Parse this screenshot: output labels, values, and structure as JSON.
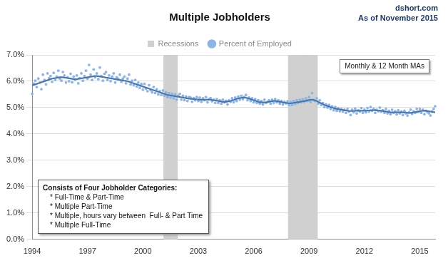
{
  "chart_data": {
    "type": "line",
    "title": "Multiple Jobholders",
    "annotations": [
      "dshort.com",
      "As of November 2015",
      "Monthly & 12 Month MAs"
    ],
    "note": {
      "title": "Consists of Four Jobholder Categories:",
      "items": [
        "* Full-Time & Part-Time",
        "* Multiple Part-Time",
        "* Multiple, hours vary between  Full- & Part Time",
        "* Multiple Full-Time"
      ]
    },
    "legend": "top",
    "grid": true,
    "ylim": [
      0,
      7
    ],
    "yticks": [
      {
        "value": 0,
        "label": "0.0%"
      },
      {
        "value": 1,
        "label": "1.0%"
      },
      {
        "value": 2,
        "label": "2.0%"
      },
      {
        "value": 3,
        "label": "3.0%"
      },
      {
        "value": 4,
        "label": "4.0%"
      },
      {
        "value": 5,
        "label": "5.0%"
      },
      {
        "value": 6,
        "label": "6.0%"
      },
      {
        "value": 7,
        "label": "7.0%"
      }
    ],
    "categories": [
      "1994",
      null,
      null,
      null,
      null,
      null,
      null,
      null,
      null,
      null,
      null,
      null,
      null,
      null,
      null,
      null,
      null,
      null,
      null,
      null,
      null,
      null,
      null,
      null,
      null,
      null,
      null,
      null,
      null,
      null,
      null,
      null,
      null,
      null,
      null,
      null,
      "1997",
      null,
      null,
      null,
      null,
      null,
      null,
      null,
      null,
      null,
      null,
      null,
      null,
      null,
      null,
      null,
      null,
      null,
      null,
      null,
      null,
      null,
      null,
      null,
      null,
      null,
      null,
      null,
      null,
      null,
      null,
      null,
      null,
      null,
      null,
      null,
      "2000",
      null,
      null,
      null,
      null,
      null,
      null,
      null,
      null,
      null,
      null,
      null,
      null,
      null,
      null,
      null,
      null,
      null,
      null,
      null,
      null,
      null,
      null,
      null,
      null,
      null,
      null,
      null,
      null,
      null,
      null,
      null,
      null,
      null,
      null,
      null,
      "2003",
      null,
      null,
      null,
      null,
      null,
      null,
      null,
      null,
      null,
      null,
      null,
      null,
      null,
      null,
      null,
      null,
      null,
      null,
      null,
      null,
      null,
      null,
      null,
      null,
      null,
      null,
      null,
      null,
      null,
      null,
      null,
      null,
      null,
      null,
      null,
      "2006",
      null,
      null,
      null,
      null,
      null,
      null,
      null,
      null,
      null,
      null,
      null,
      null,
      null,
      null,
      null,
      null,
      null,
      null,
      null,
      null,
      null,
      null,
      null,
      null,
      null,
      null,
      null,
      null,
      null,
      null,
      null,
      null,
      null,
      null,
      null,
      "2009",
      null,
      null,
      null,
      null,
      null,
      null,
      null,
      null,
      null,
      null,
      null,
      null,
      null,
      null,
      null,
      null,
      null,
      null,
      null,
      null,
      null,
      null,
      null,
      null,
      null,
      null,
      null,
      null,
      null,
      null,
      null,
      null,
      null,
      null,
      null,
      "2012",
      null,
      null,
      null,
      null,
      null,
      null,
      null,
      null,
      null,
      null,
      null,
      null,
      null,
      null,
      null,
      null,
      null,
      null,
      null,
      null,
      null,
      null,
      null,
      null,
      null,
      null,
      null,
      null,
      null,
      null,
      null,
      null,
      null,
      null,
      null,
      "2015",
      null,
      null,
      null,
      null,
      null,
      null,
      null,
      null,
      null,
      null
    ],
    "series": [
      {
        "name": "Recessions",
        "type": "bar",
        "color": "#d0d0d0",
        "values": [
          null,
          null,
          null,
          null,
          null,
          null,
          null,
          null,
          null,
          null,
          null,
          null,
          null,
          null,
          null,
          null,
          null,
          null,
          null,
          null,
          null,
          null,
          null,
          null,
          null,
          null,
          null,
          null,
          null,
          null,
          null,
          null,
          null,
          null,
          null,
          null,
          null,
          null,
          null,
          null,
          null,
          null,
          null,
          null,
          null,
          null,
          null,
          null,
          null,
          null,
          null,
          null,
          null,
          null,
          null,
          null,
          null,
          null,
          null,
          null,
          null,
          null,
          null,
          null,
          null,
          null,
          null,
          null,
          null,
          null,
          null,
          null,
          null,
          null,
          null,
          null,
          null,
          null,
          null,
          null,
          null,
          null,
          null,
          null,
          null,
          null,
          7,
          7,
          7,
          7,
          7,
          7,
          7,
          7,
          7,
          null,
          null,
          null,
          null,
          null,
          null,
          null,
          null,
          null,
          null,
          null,
          null,
          null,
          null,
          null,
          null,
          null,
          null,
          null,
          null,
          null,
          null,
          null,
          null,
          null,
          null,
          null,
          null,
          null,
          null,
          null,
          null,
          null,
          null,
          null,
          null,
          null,
          null,
          null,
          null,
          null,
          null,
          null,
          null,
          null,
          null,
          null,
          null,
          null,
          null,
          null,
          null,
          null,
          null,
          null,
          null,
          null,
          null,
          null,
          null,
          null,
          null,
          null,
          null,
          null,
          null,
          null,
          null,
          null,
          null,
          null,
          null,
          7,
          7,
          7,
          7,
          7,
          7,
          7,
          7,
          7,
          7,
          7,
          7,
          7,
          7,
          7,
          7,
          7,
          7,
          7,
          null,
          null,
          null,
          null,
          null,
          null,
          null,
          null,
          null,
          null,
          null,
          null,
          null,
          null,
          null,
          null,
          null,
          null,
          null,
          null,
          null,
          null,
          null,
          null,
          null,
          null,
          null,
          null,
          null,
          null,
          null,
          null,
          null,
          null,
          null,
          null,
          null,
          null,
          null,
          null,
          null,
          null,
          null,
          null,
          null,
          null,
          null,
          null,
          null,
          null,
          null,
          null,
          null,
          null,
          null,
          null,
          null,
          null,
          null,
          null,
          null,
          null,
          null,
          null,
          null,
          null,
          null,
          null,
          null,
          null,
          null,
          null,
          null,
          null,
          null,
          null,
          null
        ]
      },
      {
        "name": "Percent of Employed",
        "type": "line",
        "color": "#8eb4e3",
        "marker": "circle",
        "line_style": "none",
        "values": [
          5.52,
          5.91,
          6.02,
          5.78,
          6.1,
          5.95,
          5.7,
          6.25,
          6.05,
          5.88,
          6.3,
          6.12,
          6.2,
          5.98,
          6.32,
          6.05,
          6.18,
          6.4,
          6.1,
          6.02,
          6.35,
          6.22,
          5.95,
          6.15,
          6.0,
          6.28,
          5.96,
          6.18,
          6.05,
          6.22,
          5.92,
          6.12,
          6.3,
          6.02,
          6.2,
          6.4,
          6.1,
          6.62,
          6.25,
          6.05,
          6.45,
          6.15,
          6.3,
          6.08,
          6.52,
          6.2,
          6.02,
          6.28,
          6.35,
          6.05,
          6.22,
          6.0,
          6.18,
          6.3,
          5.95,
          6.15,
          6.08,
          6.25,
          5.98,
          6.1,
          6.18,
          5.92,
          6.1,
          6.25,
          5.88,
          6.02,
          5.85,
          6.05,
          5.8,
          5.95,
          5.75,
          5.9,
          5.68,
          5.9,
          5.72,
          5.62,
          5.85,
          5.66,
          5.58,
          5.78,
          5.55,
          5.7,
          5.5,
          5.62,
          5.48,
          5.65,
          5.45,
          5.58,
          5.4,
          5.55,
          5.38,
          5.52,
          5.35,
          5.5,
          5.3,
          5.45,
          5.52,
          5.3,
          5.45,
          5.28,
          5.42,
          5.25,
          5.4,
          5.38,
          5.22,
          5.36,
          5.28,
          5.4,
          5.25,
          5.38,
          5.22,
          5.35,
          5.28,
          5.4,
          5.2,
          5.32,
          5.36,
          5.24,
          5.3,
          5.18,
          5.32,
          5.18,
          5.28,
          5.15,
          5.3,
          5.2,
          5.26,
          5.12,
          5.28,
          5.22,
          5.35,
          5.2,
          5.38,
          5.25,
          5.42,
          5.3,
          5.45,
          5.32,
          5.4,
          5.48,
          5.28,
          5.38,
          5.25,
          5.35,
          5.2,
          5.32,
          5.18,
          5.28,
          5.15,
          5.25,
          5.12,
          5.3,
          5.18,
          5.22,
          5.28,
          5.15,
          5.3,
          5.18,
          5.32,
          5.2,
          5.28,
          5.15,
          5.25,
          5.12,
          5.22,
          5.16,
          5.24,
          5.1,
          5.22,
          5.1,
          5.25,
          5.14,
          5.28,
          5.18,
          5.3,
          5.2,
          5.32,
          5.22,
          5.35,
          5.25,
          5.4,
          5.22,
          5.55,
          5.3,
          5.25,
          5.35,
          5.15,
          5.28,
          5.1,
          5.18,
          5.02,
          5.12,
          5.0,
          5.1,
          4.95,
          5.05,
          4.9,
          5.02,
          4.88,
          4.98,
          4.86,
          4.95,
          4.85,
          4.92,
          4.8,
          4.95,
          4.85,
          4.72,
          4.92,
          4.82,
          4.96,
          4.78,
          4.9,
          4.85,
          4.98,
          4.8,
          4.92,
          4.82,
          4.98,
          4.85,
          5.02,
          4.88,
          4.95,
          4.8,
          4.92,
          4.86,
          5.0,
          4.84,
          4.9,
          4.8,
          4.95,
          4.78,
          4.88,
          4.75,
          4.92,
          4.8,
          4.86,
          4.74,
          4.9,
          4.78,
          4.85,
          4.72,
          4.88,
          4.78,
          4.7,
          4.82,
          4.92,
          4.76,
          4.86,
          4.8,
          4.95,
          4.84,
          4.95,
          4.8,
          4.92,
          4.75,
          4.88,
          4.82,
          4.78,
          4.7,
          4.85,
          4.95,
          5.05
        ]
      },
      {
        "type": "line",
        "color": "#4a76a8",
        "marker": "none",
        "line_style": "solid",
        "values": [
          5.85,
          5.86,
          5.88,
          5.9,
          5.92,
          5.94,
          5.96,
          5.98,
          6.0,
          6.02,
          6.04,
          6.06,
          6.08,
          6.1,
          6.11,
          6.12,
          6.13,
          6.14,
          6.15,
          6.15,
          6.15,
          6.14,
          6.13,
          6.12,
          6.11,
          6.1,
          6.09,
          6.08,
          6.08,
          6.08,
          6.09,
          6.1,
          6.11,
          6.12,
          6.13,
          6.14,
          6.15,
          6.16,
          6.17,
          6.18,
          6.19,
          6.2,
          6.2,
          6.19,
          6.18,
          6.17,
          6.16,
          6.15,
          6.14,
          6.13,
          6.12,
          6.11,
          6.1,
          6.09,
          6.08,
          6.07,
          6.06,
          6.05,
          6.04,
          6.03,
          6.02,
          6.01,
          6.0,
          5.98,
          5.96,
          5.94,
          5.92,
          5.9,
          5.88,
          5.86,
          5.84,
          5.82,
          5.8,
          5.78,
          5.76,
          5.74,
          5.72,
          5.7,
          5.68,
          5.66,
          5.64,
          5.62,
          5.6,
          5.58,
          5.56,
          5.54,
          5.52,
          5.5,
          5.48,
          5.47,
          5.46,
          5.45,
          5.44,
          5.43,
          5.42,
          5.41,
          5.4,
          5.39,
          5.38,
          5.37,
          5.36,
          5.35,
          5.34,
          5.33,
          5.33,
          5.32,
          5.32,
          5.31,
          5.31,
          5.3,
          5.3,
          5.3,
          5.3,
          5.3,
          5.3,
          5.3,
          5.3,
          5.29,
          5.28,
          5.27,
          5.26,
          5.25,
          5.24,
          5.23,
          5.22,
          5.22,
          5.22,
          5.23,
          5.24,
          5.25,
          5.27,
          5.29,
          5.31,
          5.33,
          5.35,
          5.36,
          5.37,
          5.38,
          5.38,
          5.37,
          5.36,
          5.34,
          5.32,
          5.3,
          5.28,
          5.26,
          5.24,
          5.22,
          5.21,
          5.2,
          5.2,
          5.2,
          5.2,
          5.21,
          5.22,
          5.23,
          5.24,
          5.25,
          5.25,
          5.24,
          5.23,
          5.22,
          5.21,
          5.2,
          5.19,
          5.18,
          5.17,
          5.16,
          5.16,
          5.17,
          5.18,
          5.19,
          5.2,
          5.21,
          5.22,
          5.23,
          5.24,
          5.25,
          5.26,
          5.28,
          5.29,
          5.3,
          5.3,
          5.29,
          5.27,
          5.25,
          5.22,
          5.19,
          5.16,
          5.13,
          5.1,
          5.08,
          5.06,
          5.04,
          5.02,
          5.0,
          4.98,
          4.96,
          4.95,
          4.94,
          4.93,
          4.92,
          4.91,
          4.9,
          4.89,
          4.88,
          4.87,
          4.87,
          4.87,
          4.87,
          4.88,
          4.88,
          4.88,
          4.88,
          4.88,
          4.88,
          4.88,
          4.88,
          4.89,
          4.89,
          4.9,
          4.9,
          4.9,
          4.9,
          4.89,
          4.89,
          4.88,
          4.88,
          4.87,
          4.86,
          4.85,
          4.84,
          4.83,
          4.82,
          4.82,
          4.82,
          4.82,
          4.82,
          4.82,
          4.82,
          4.82,
          4.82,
          4.81,
          4.81,
          4.8,
          4.8,
          4.8,
          4.81,
          4.82,
          4.83,
          4.84,
          4.85,
          4.86,
          4.87,
          4.88,
          4.88,
          4.88,
          4.87,
          4.86,
          4.85,
          4.84,
          4.83,
          4.82
        ]
      }
    ]
  }
}
